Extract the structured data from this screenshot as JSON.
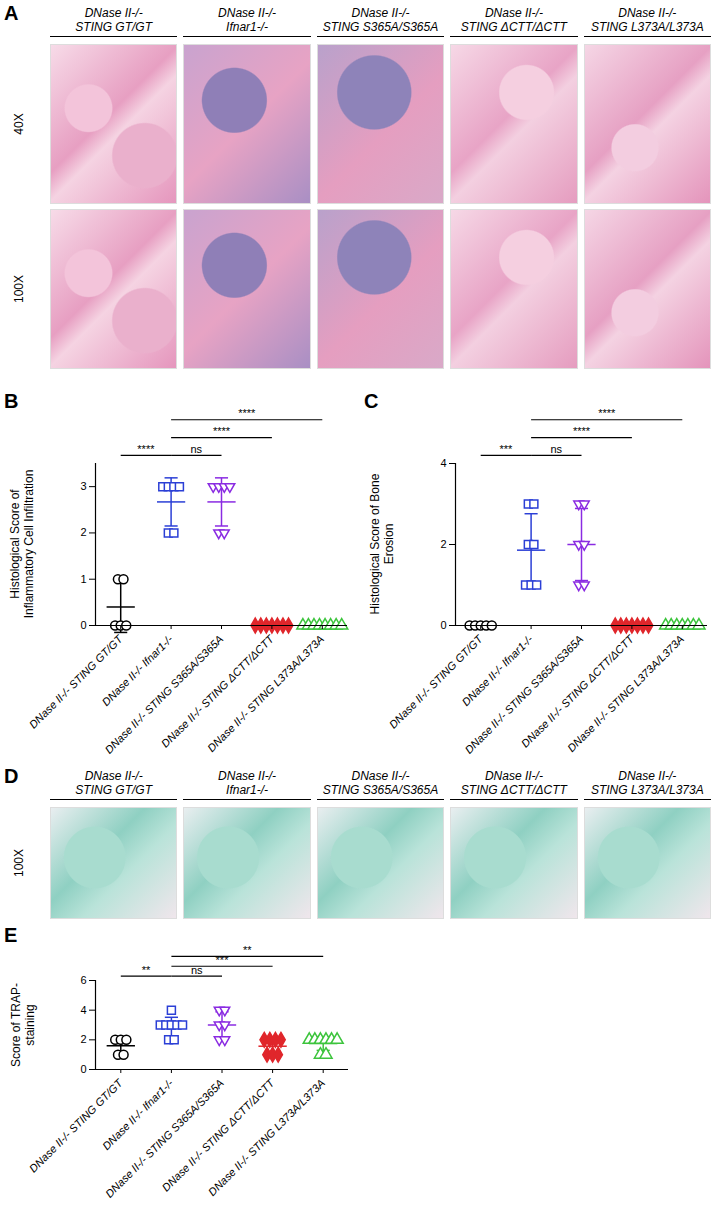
{
  "image_panels": [
    {
      "panel": "A",
      "columns": [
        [
          "DNase II-/-",
          "STING GT/GT"
        ],
        [
          "DNase II-/-",
          "Ifnar1-/-"
        ],
        [
          "DNase II-/-",
          "STING S365A/S365A"
        ],
        [
          "DNase II-/-",
          "STING ΔCTT/ΔCTT"
        ],
        [
          "DNase II-/-",
          "STING L373A/L373A"
        ]
      ],
      "rows": [
        "40X",
        "100X"
      ]
    },
    {
      "panel": "D",
      "columns": [
        [
          "DNase II-/-",
          "STING GT/GT"
        ],
        [
          "DNase II-/-",
          "Ifnar1-/-"
        ],
        [
          "DNase II-/-",
          "STING S365A/S365A"
        ],
        [
          "DNase II-/-",
          "STING ΔCTT/ΔCTT"
        ],
        [
          "DNase II-/-",
          "STING L373A/L373A"
        ]
      ],
      "rows": [
        "100X"
      ]
    }
  ],
  "chart_data": [
    {
      "panel": "B",
      "type": "scatter",
      "ylabel": "Histological Score of Inflammatory Cell Infiltration",
      "categories": [
        "DNase II-/- STING GT/GT",
        "DNase II-/- Ifnar1-/-",
        "DNase II-/- STING S365A/S365A",
        "DNase II-/- STING ΔCTT/ΔCTT",
        "DNase II-/- STING L373A/L373A"
      ],
      "colors": [
        "#000000",
        "#2b3fd6",
        "#8a2be2",
        "#e0262b",
        "#3cc43c"
      ],
      "markers": [
        "circle",
        "square",
        "triangle-down",
        "diamond",
        "triangle"
      ],
      "values": [
        [
          0,
          0,
          0,
          1,
          1
        ],
        [
          2,
          2,
          3,
          3,
          3,
          3
        ],
        [
          2,
          2,
          3,
          3,
          3,
          3
        ],
        [
          0,
          0,
          0,
          0,
          0,
          0,
          0
        ],
        [
          0,
          0,
          0,
          0,
          0,
          0,
          0,
          0
        ]
      ],
      "mean": [
        0.4,
        2.67,
        2.67,
        0,
        0
      ],
      "sd": [
        0.55,
        0.52,
        0.52,
        0,
        0
      ],
      "ylim": [
        0,
        3.5
      ],
      "yticks": [
        0,
        1,
        2,
        3
      ],
      "comparisons": [
        {
          "from": 0,
          "to": 1,
          "label": "****"
        },
        {
          "from": 1,
          "to": 2,
          "label": "ns"
        },
        {
          "from": 1,
          "to": 3,
          "label": "****"
        },
        {
          "from": 1,
          "to": 4,
          "label": "****"
        }
      ]
    },
    {
      "panel": "C",
      "type": "scatter",
      "ylabel": "Histological Score of Bone Erosion",
      "categories": [
        "DNase II-/- STING GT/GT",
        "DNase II-/- Ifnar1-/-",
        "DNase II-/- STING S365A/S365A",
        "DNase II-/- STING ΔCTT/ΔCTT",
        "DNase II-/- STING L373A/L373A"
      ],
      "colors": [
        "#000000",
        "#2b3fd6",
        "#8a2be2",
        "#e0262b",
        "#3cc43c"
      ],
      "markers": [
        "circle",
        "square",
        "triangle-down",
        "diamond",
        "triangle"
      ],
      "values": [
        [
          0,
          0,
          0,
          0,
          0
        ],
        [
          1,
          1,
          1,
          2,
          2,
          3,
          3
        ],
        [
          1,
          1,
          2,
          2,
          3,
          3
        ],
        [
          0,
          0,
          0,
          0,
          0,
          0,
          0
        ],
        [
          0,
          0,
          0,
          0,
          0,
          0,
          0
        ]
      ],
      "mean": [
        0,
        1.86,
        2.0,
        0,
        0
      ],
      "sd": [
        0,
        0.9,
        0.89,
        0,
        0
      ],
      "ylim": [
        0,
        4
      ],
      "yticks": [
        0,
        2,
        4
      ],
      "comparisons": [
        {
          "from": 0,
          "to": 1,
          "label": "***"
        },
        {
          "from": 1,
          "to": 2,
          "label": "ns"
        },
        {
          "from": 1,
          "to": 3,
          "label": "****"
        },
        {
          "from": 1,
          "to": 4,
          "label": "****"
        }
      ]
    },
    {
      "panel": "E",
      "type": "scatter",
      "ylabel": "Score of TRAP-staining",
      "categories": [
        "DNase II-/- STING GT/GT",
        "DNase II-/- Ifnar1-/-",
        "DNase II-/- STING S365A/S365A",
        "DNase II-/- STING ΔCTT/ΔCTT",
        "DNase II-/- STING L373A/L373A"
      ],
      "colors": [
        "#000000",
        "#2b3fd6",
        "#8a2be2",
        "#e0262b",
        "#3cc43c"
      ],
      "markers": [
        "circle",
        "square",
        "triangle-down",
        "diamond",
        "triangle"
      ],
      "values": [
        [
          1,
          1,
          2,
          2,
          2
        ],
        [
          2,
          2,
          3,
          3,
          3,
          3,
          3,
          4
        ],
        [
          2,
          2,
          3,
          3,
          4,
          4
        ],
        [
          1,
          1,
          1,
          2,
          2,
          2,
          2
        ],
        [
          1,
          1,
          2,
          2,
          2,
          2,
          2,
          2
        ]
      ],
      "mean": [
        1.6,
        2.88,
        3.0,
        1.57,
        1.75
      ],
      "sd": [
        0.55,
        0.64,
        0.89,
        0.53,
        0.46
      ],
      "ylim": [
        0,
        6
      ],
      "yticks": [
        0,
        2,
        4,
        6
      ],
      "comparisons": [
        {
          "from": 0,
          "to": 1,
          "label": "**"
        },
        {
          "from": 1,
          "to": 2,
          "label": "ns"
        },
        {
          "from": 1,
          "to": 3,
          "label": "***"
        },
        {
          "from": 1,
          "to": 4,
          "label": "**"
        }
      ]
    }
  ]
}
